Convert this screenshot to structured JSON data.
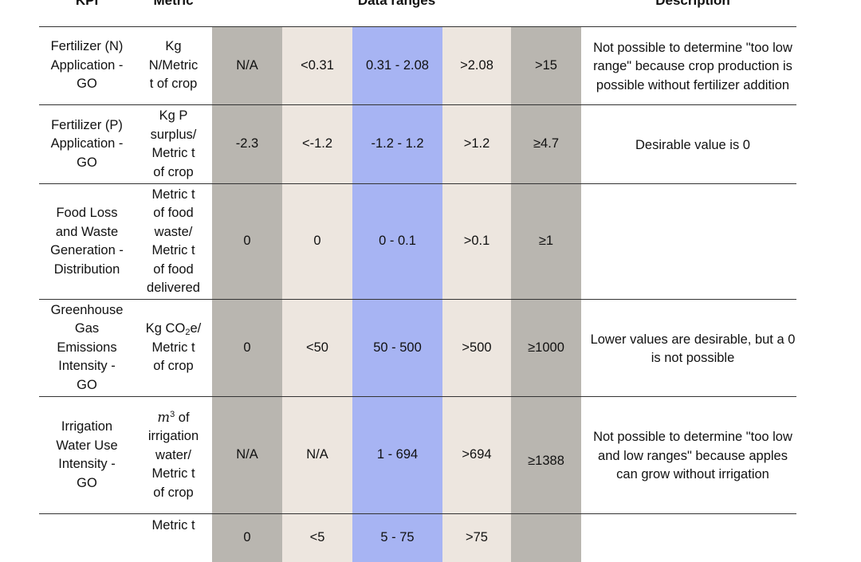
{
  "header": {
    "kpi": "KPI",
    "metric": "Metric",
    "ranges": "Data ranges",
    "description": "Description"
  },
  "rows": [
    {
      "kpi": [
        "Fertilizer (N)",
        "Application -",
        "GO"
      ],
      "metric": [
        "Kg",
        "N/Metric",
        "t of crop"
      ],
      "ranges": [
        "N/A",
        "<0.31",
        "0.31 - 2.08",
        ">2.08",
        ">15"
      ],
      "description": "Not possible to determine \"too low range\" because crop production is possible without fertilizer addition"
    },
    {
      "kpi": [
        "Fertilizer (P)",
        "Application -",
        "GO"
      ],
      "metric": [
        "Kg P",
        "surplus/",
        "Metric t",
        "of crop"
      ],
      "ranges": [
        "-2.3",
        "<-1.2",
        "-1.2 - 1.2",
        ">1.2",
        "≥4.7"
      ],
      "description": "Desirable value is 0"
    },
    {
      "kpi": [
        "Food Loss",
        "and Waste",
        "Generation -",
        "Distribution"
      ],
      "metric": [
        "Metric t",
        "of food",
        "waste/",
        "Metric t",
        "of food",
        "delivered"
      ],
      "ranges": [
        "0",
        "0",
        "0 - 0.1",
        ">0.1",
        "≥1"
      ],
      "description": ""
    },
    {
      "kpi": [
        "Greenhouse",
        "Gas",
        "Emissions",
        "Intensity -",
        "GO"
      ],
      "metric_parts": {
        "pre": "Kg CO",
        "sub": "2",
        "post": "e/"
      },
      "metric": [
        "Metric t",
        "of crop"
      ],
      "ranges": [
        "0",
        "<50",
        "50 - 500",
        ">500",
        "≥1000"
      ],
      "description": "Lower values are desirable, but a 0 is not possible"
    },
    {
      "kpi": [
        "Irrigation",
        "Water Use",
        "Intensity -",
        "GO"
      ],
      "metric_parts": {
        "base": "m",
        "sup": "3",
        "post": " of"
      },
      "metric": [
        "irrigation",
        "water/",
        "Metric t",
        "of crop"
      ],
      "ranges": [
        "N/A",
        "N/A",
        "1 - 694",
        ">694",
        "≥1388"
      ],
      "description": "Not possible to determine \"too low and low ranges\" because apples can grow without irrigation"
    },
    {
      "kpi": [],
      "metric": [
        "Metric t"
      ],
      "ranges": [
        "0",
        "<5",
        "5 - 75",
        ">75",
        ""
      ],
      "description": ""
    }
  ]
}
